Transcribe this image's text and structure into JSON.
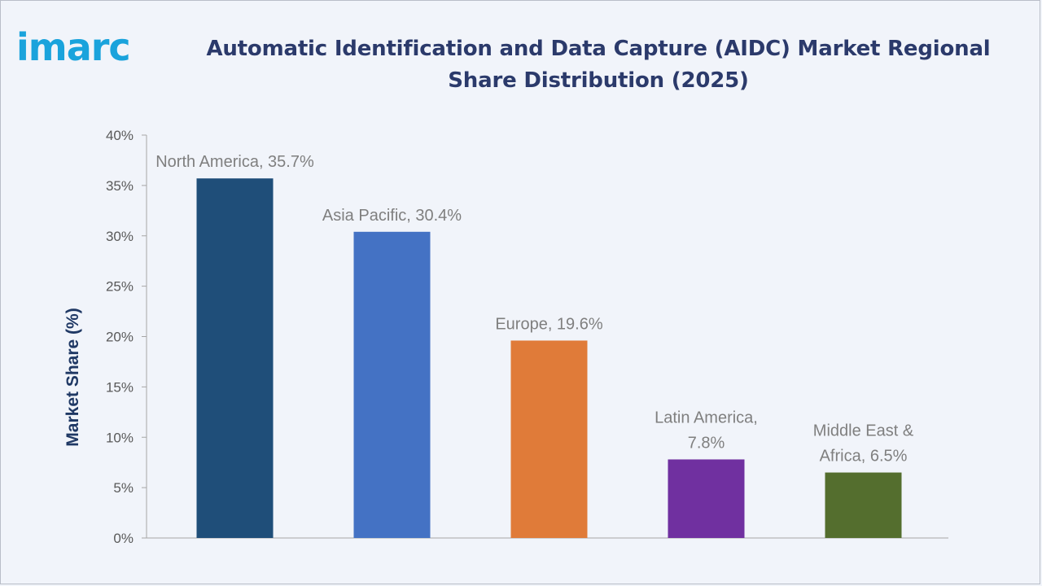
{
  "brand": {
    "logo_text": "imarc",
    "color": "#1aa3dc"
  },
  "header": {
    "title": "Automatic Identification and Data Capture (AIDC) Market Regional Share Distribution (2025)"
  },
  "chart_data": {
    "type": "bar",
    "title": "Automatic Identification and Data Capture (AIDC) Market Regional Share Distribution (2025)",
    "xlabel": "",
    "ylabel": "Market Share (%)",
    "ylim": [
      0,
      40
    ],
    "ytick_step": 5,
    "ytick_labels": [
      "0%",
      "5%",
      "10%",
      "15%",
      "20%",
      "25%",
      "30%",
      "35%",
      "40%"
    ],
    "categories": [
      "North America",
      "Asia Pacific",
      "Europe",
      "Latin America",
      "Middle East & Africa"
    ],
    "values": [
      35.7,
      30.4,
      19.6,
      7.8,
      6.5
    ],
    "data_labels": [
      [
        "North America, 35.7%"
      ],
      [
        "Asia Pacific, 30.4%"
      ],
      [
        "Europe, 19.6%"
      ],
      [
        "Latin America,",
        "7.8%"
      ],
      [
        "Middle East &",
        "Africa, 6.5%"
      ]
    ],
    "colors": [
      "#1f4e79",
      "#4472c4",
      "#e07b39",
      "#7030a0",
      "#546e2e"
    ],
    "grid": false,
    "legend": "none"
  }
}
